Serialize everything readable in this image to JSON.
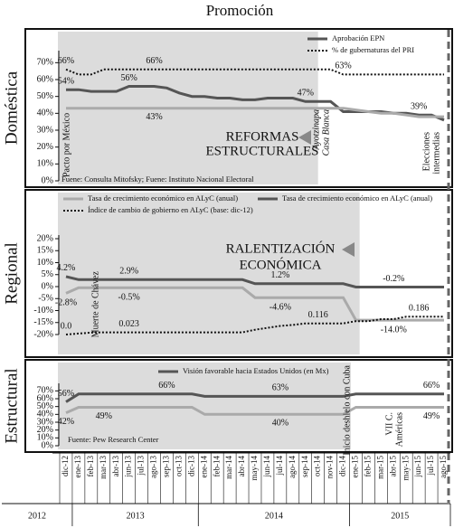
{
  "title": "Promoción",
  "chart_data": [
    {
      "type": "line",
      "y_label": "Doméstica",
      "ylim": [
        0,
        75
      ],
      "yticks": [
        {
          "value": 0,
          "label": "0%"
        },
        {
          "value": 10,
          "label": "10%"
        },
        {
          "value": 20,
          "label": "20%"
        },
        {
          "value": 30,
          "label": "30%"
        },
        {
          "value": 40,
          "label": "40%"
        },
        {
          "value": 50,
          "label": "50%"
        },
        {
          "value": 60,
          "label": "60%"
        },
        {
          "value": 70,
          "label": "70%"
        }
      ],
      "series": [
        {
          "name": "Aprobación EPN",
          "color": "#555555",
          "style": "solid",
          "values": [
            54,
            54,
            53,
            53,
            53,
            56,
            56,
            56,
            55,
            52,
            50,
            50,
            49,
            49,
            48,
            48,
            49,
            49,
            49,
            47,
            47,
            47,
            41,
            41,
            41,
            41,
            40,
            40,
            39,
            39,
            36
          ],
          "value_labels": [
            "54%",
            null,
            null,
            null,
            null,
            "56%",
            null,
            null,
            null,
            null,
            null,
            null,
            null,
            null,
            null,
            null,
            null,
            null,
            null,
            "47%",
            null,
            null,
            null,
            null,
            null,
            null,
            null,
            null,
            "39%",
            null,
            null
          ]
        },
        {
          "name": "% de gubernaturas del PRI",
          "color": "#111111",
          "style": "dotted",
          "values": [
            66,
            63,
            63,
            66,
            66,
            66,
            66,
            66,
            66,
            66,
            66,
            66,
            66,
            66,
            66,
            66,
            66,
            66,
            66,
            66,
            66,
            66,
            63,
            63,
            63,
            63,
            63,
            63,
            63,
            63,
            63
          ],
          "value_labels": [
            "66%",
            null,
            null,
            null,
            null,
            null,
            null,
            "66%",
            null,
            null,
            null,
            null,
            null,
            null,
            null,
            null,
            null,
            null,
            null,
            null,
            null,
            null,
            "63%",
            null,
            null,
            null,
            null,
            null,
            null,
            null,
            null
          ]
        },
        {
          "color": "#aaaaaa",
          "style": "solid",
          "values": [
            43,
            43,
            43,
            43,
            43,
            43,
            43,
            43,
            43,
            43,
            43,
            43,
            43,
            43,
            43,
            43,
            43,
            43,
            43,
            43,
            43,
            43,
            43,
            42,
            41,
            40,
            40,
            39,
            38,
            38,
            38
          ],
          "value_labels": [
            null,
            null,
            null,
            null,
            null,
            null,
            null,
            "43%",
            null,
            null,
            null,
            null,
            null,
            null,
            null,
            null,
            null,
            null,
            null,
            null,
            null,
            null,
            null,
            null,
            null,
            null,
            null,
            null,
            null,
            null,
            null
          ]
        }
      ],
      "emphasis": [
        "REFORMAS",
        "ESTRUCTURALES"
      ],
      "annotations": [
        "Pacto por México",
        "Ayotzinapa",
        "Casa Blanca",
        "Elecciones",
        "intermedias"
      ],
      "source": "Fuene: Consulta Mitofsky; Fuene: Instituto Nacional Electoral"
    },
    {
      "type": "line",
      "y_label": "Regional",
      "ylim": [
        -20,
        20
      ],
      "y2lim": [
        0,
        1
      ],
      "yticks": [
        {
          "value": -20,
          "label": "-20%"
        },
        {
          "value": -15,
          "label": "-15%"
        },
        {
          "value": -10,
          "label": "-10%"
        },
        {
          "value": -5,
          "label": "-5%"
        },
        {
          "value": 0,
          "label": "0%"
        },
        {
          "value": 5,
          "label": "5%"
        },
        {
          "value": 10,
          "label": "10%"
        },
        {
          "value": 15,
          "label": "15%"
        },
        {
          "value": 20,
          "label": "20%"
        }
      ],
      "series": [
        {
          "name": "Tasa de crecimiento económico  en ALyC (anual)",
          "color": "#aaaaaa",
          "style": "solid",
          "values": [
            -2.8,
            -0.5,
            -0.5,
            -0.5,
            -0.5,
            -0.5,
            -0.5,
            -0.5,
            -0.5,
            -0.5,
            -0.5,
            -0.5,
            -0.5,
            -0.5,
            -0.5,
            -4.6,
            -4.6,
            -4.6,
            -4.6,
            -4.6,
            -4.6,
            -4.6,
            -4.6,
            -14.0,
            -14.0,
            -14.0,
            -14.0,
            -14.0,
            -14.0,
            -14.0,
            -14.0
          ],
          "value_labels": [
            "-2.8%",
            null,
            null,
            null,
            null,
            "-0.5%",
            null,
            null,
            null,
            null,
            null,
            null,
            null,
            null,
            null,
            null,
            null,
            "-4.6%",
            null,
            null,
            null,
            null,
            null,
            null,
            null,
            null,
            "-14.0%",
            null,
            null,
            null,
            null
          ]
        },
        {
          "name": "Tasa de crecimiento económico  en ALyC (anual)",
          "color": "#555555",
          "style": "solid",
          "values": [
            4.2,
            2.9,
            2.9,
            2.9,
            2.9,
            2.9,
            2.9,
            2.9,
            2.9,
            2.9,
            2.9,
            2.9,
            2.9,
            2.9,
            2.9,
            1.2,
            1.2,
            1.2,
            1.2,
            1.2,
            1.2,
            1.2,
            1.2,
            -0.2,
            -0.2,
            -0.2,
            -0.2,
            -0.2,
            -0.2,
            -0.2,
            -0.2
          ],
          "value_labels": [
            "4.2%",
            null,
            null,
            null,
            null,
            "2.9%",
            null,
            null,
            null,
            null,
            null,
            null,
            null,
            null,
            null,
            null,
            null,
            "1.2%",
            null,
            null,
            null,
            null,
            null,
            null,
            null,
            null,
            "-0.2%",
            null,
            null,
            null,
            null
          ]
        },
        {
          "name": "Índice de cambio de gobierno en ALyC (base: dic-12)",
          "color": "#111111",
          "style": "dotted",
          "axis": "y2",
          "values": [
            0,
            0.01,
            0.02,
            0.023,
            0.023,
            0.023,
            0.023,
            0.023,
            0.023,
            0.023,
            0.023,
            0.023,
            0.023,
            0.023,
            0.023,
            0.05,
            0.07,
            0.09,
            0.1,
            0.116,
            0.116,
            0.116,
            0.116,
            0.14,
            0.14,
            0.16,
            0.16,
            0.186,
            0.186,
            0.186,
            0.186
          ],
          "value_labels": [
            "0.0",
            null,
            null,
            null,
            null,
            "0.023",
            null,
            null,
            null,
            null,
            null,
            null,
            null,
            null,
            null,
            null,
            null,
            null,
            null,
            null,
            "0.116",
            null,
            null,
            null,
            null,
            null,
            null,
            null,
            "0.186",
            null,
            null
          ]
        }
      ],
      "emphasis": [
        "RALENTIZACIÓN",
        "ECONÓMICA"
      ],
      "annotations": [
        "Muerte de Chávez"
      ]
    },
    {
      "type": "line",
      "y_label": "Estructural",
      "ylim": [
        0,
        75
      ],
      "yticks": [
        {
          "value": 0,
          "label": "0%"
        },
        {
          "value": 10,
          "label": "10%"
        },
        {
          "value": 20,
          "label": "20%"
        },
        {
          "value": 30,
          "label": "30%"
        },
        {
          "value": 40,
          "label": "40%"
        },
        {
          "value": 50,
          "label": "50%"
        },
        {
          "value": 60,
          "label": "60%"
        },
        {
          "value": 70,
          "label": "70%"
        }
      ],
      "series": [
        {
          "name": "Visión favorable hacia Estados Unidos (en Mx)",
          "color": "#555555",
          "style": "solid",
          "values": [
            56,
            66,
            66,
            66,
            66,
            66,
            66,
            66,
            66,
            66,
            66,
            63,
            63,
            63,
            63,
            63,
            63,
            63,
            63,
            63,
            63,
            63,
            63,
            66,
            66,
            66,
            66,
            66,
            66,
            66,
            66
          ],
          "value_labels": [
            "56%",
            null,
            null,
            null,
            null,
            null,
            null,
            null,
            "66%",
            null,
            null,
            null,
            null,
            null,
            null,
            null,
            null,
            "63%",
            null,
            null,
            null,
            null,
            null,
            null,
            null,
            null,
            null,
            null,
            null,
            "66%",
            null
          ]
        },
        {
          "color": "#aaaaaa",
          "style": "solid",
          "values": [
            42,
            49,
            49,
            49,
            49,
            49,
            49,
            49,
            49,
            49,
            49,
            40,
            40,
            40,
            40,
            40,
            40,
            40,
            40,
            40,
            40,
            40,
            40,
            49,
            49,
            49,
            49,
            49,
            49,
            49,
            49
          ],
          "value_labels": [
            "42%",
            null,
            null,
            "49%",
            null,
            null,
            null,
            null,
            null,
            null,
            null,
            null,
            null,
            null,
            null,
            null,
            null,
            "40%",
            null,
            null,
            null,
            null,
            null,
            null,
            null,
            null,
            null,
            null,
            null,
            "49%",
            null
          ]
        }
      ],
      "annotations": [
        "Inicio deshielo con Cuba",
        "VII C.",
        "Américas"
      ],
      "source": "Fuente: Pew Research Center",
      "categories": [
        "dic-12",
        "ene-13",
        "feb-13",
        "mar-13",
        "abr-13",
        "jun-13",
        "jul-13",
        "ago-13",
        "sep-13",
        "oct-13",
        "dic-13",
        "ene-14",
        "feb-14",
        "mar-14",
        "abr-14",
        "may-14",
        "jun-14",
        "jul-14",
        "ago-14",
        "sep-14",
        "oct-14",
        "nov-14",
        "dic-14",
        "ene-15",
        "feb-15",
        "mar-15",
        "abr-15",
        "may-15",
        "jun-15",
        "jul-15",
        "ago-15"
      ],
      "x_groups": [
        "2012",
        "2013",
        "2014",
        "2015"
      ]
    }
  ]
}
